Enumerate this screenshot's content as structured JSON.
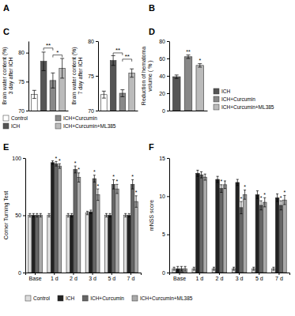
{
  "chart_data": [
    {
      "type": "bar",
      "title": "C",
      "ylabel": "Brain water content (%)\n3 day after ICH",
      "categories": [
        "Control",
        "ICH",
        "ICH+Curcumin",
        "ICH+Curcumin+ML385"
      ],
      "values": [
        72.8,
        78.5,
        75.2,
        77.3
      ],
      "errors": [
        0.7,
        1.6,
        1.3,
        1.7
      ],
      "colors": [
        "#ffffff",
        "#555555",
        "#888888",
        "#bbbbbb"
      ],
      "ylim": [
        70,
        82
      ],
      "yticks": [
        70,
        75,
        80
      ],
      "tick_labels": "y",
      "legend": "bottom",
      "annotations": [
        {
          "text": "A"
        },
        {
          "text": "B"
        },
        {
          "text": "**",
          "x": [
            "ICH",
            "ICH+Curcumin"
          ],
          "y": 80.8
        },
        {
          "text": "*",
          "x": [
            "ICH+Curcumin",
            "ICH+Curcumin+ML385"
          ],
          "y": 79.6
        }
      ]
    },
    {
      "type": "bar",
      "ylabel": "Brain water content (%)\n7 day after ICH",
      "categories": [
        "Control",
        "ICH",
        "ICH+Curcumin",
        "ICH+Curcumin+ML385"
      ],
      "values": [
        72.3,
        77.2,
        72.5,
        75.4
      ],
      "errors": [
        0.5,
        0.7,
        0.5,
        0.6
      ],
      "colors": [
        "#ffffff",
        "#555555",
        "#888888",
        "#bbbbbb"
      ],
      "ylim": [
        70,
        80
      ],
      "yticks": [
        70,
        75,
        80
      ],
      "tick_labels": "y",
      "annotations": [
        {
          "text": "**",
          "x": [
            "ICH",
            "ICH+Curcumin"
          ],
          "y": 78.3
        },
        {
          "text": "**",
          "x": [
            "ICH+Curcumin",
            "ICH+Curcumin+ML385"
          ],
          "y": 77.4
        }
      ]
    },
    {
      "type": "bar",
      "title": "D",
      "ylabel": "Reduction of hematoma\nvolume ( % )",
      "categories": [
        "ICH",
        "ICH+Curcumin",
        "ICH+Curcumin+ML385"
      ],
      "values": [
        39.0,
        62.0,
        52.0
      ],
      "errors": [
        2.0,
        2.0,
        2.0
      ],
      "colors": [
        "#555555",
        "#888888",
        "#bbbbbb"
      ],
      "ylim": [
        0,
        80
      ],
      "yticks": [
        0,
        20,
        40,
        60,
        80
      ],
      "tick_labels": "y",
      "legend": "right",
      "annotations": [
        {
          "text": "**",
          "x": "ICH+Curcumin"
        },
        {
          "text": "*",
          "x": "ICH+Curcumin+ML385"
        }
      ]
    },
    {
      "type": "bar",
      "title": "E",
      "ylabel": "Corner Turning Test",
      "categories": [
        "Base",
        "1 d",
        "2 d",
        "3 d",
        "5 d",
        "7 d"
      ],
      "series": [
        {
          "name": "Control",
          "color": "#dddddd",
          "values": [
            50,
            50,
            50,
            52,
            50,
            50
          ],
          "errors": [
            1.5,
            1.5,
            1.5,
            1.5,
            1.5,
            1.5
          ]
        },
        {
          "name": "ICH",
          "color": "#222222",
          "values": [
            50,
            96,
            50,
            53,
            50,
            50
          ],
          "errors": [
            1.5,
            1.5,
            1.5,
            1.5,
            1.5,
            1.5
          ]
        },
        {
          "name": "ICH+Curcumin",
          "color": "#666666",
          "values": [
            50,
            95,
            90,
            82,
            77,
            77
          ],
          "errors": [
            1.5,
            2.0,
            3.0,
            3.0,
            4.0,
            4.0
          ]
        },
        {
          "name": "ICH+Curcumin+ML385",
          "color": "#aaaaaa",
          "values": [
            50,
            93,
            83,
            68,
            73,
            62
          ],
          "errors": [
            1.5,
            2.0,
            4.0,
            5.0,
            4.0,
            5.0
          ]
        }
      ],
      "ylim": [
        0,
        100
      ],
      "yticks": [
        0,
        50,
        100
      ],
      "annotations": [
        {
          "text": "*",
          "x": "1 d",
          "series": "ICH+Curcumin"
        },
        {
          "text": "*",
          "x": "1 d",
          "series": "ICH+Curcumin+ML385"
        },
        {
          "text": "*",
          "x": "2 d",
          "series": "ICH+Curcumin"
        },
        {
          "text": "*",
          "x": "2 d",
          "series": "ICH+Curcumin+ML385"
        },
        {
          "text": "*",
          "x": "3 d",
          "series": "ICH+Curcumin"
        },
        {
          "text": "*",
          "x": "3 d",
          "series": "ICH+Curcumin+ML385"
        },
        {
          "text": "*",
          "x": "5 d",
          "series": "ICH+Curcumin"
        },
        {
          "text": "*",
          "x": "5 d",
          "series": "ICH+Curcumin+ML385"
        },
        {
          "text": "*",
          "x": "7 d",
          "series": "ICH+Curcumin"
        },
        {
          "text": "*",
          "x": "7 d",
          "series": "ICH+Curcumin+ML385"
        }
      ]
    },
    {
      "type": "bar",
      "title": "F",
      "ylabel": "mNSS score",
      "categories": [
        "Base",
        "1 d",
        "2 d",
        "3 d",
        "5 d",
        "7 d"
      ],
      "series": [
        {
          "name": "Control",
          "color": "#dddddd",
          "values": [
            0.5,
            0.5,
            0.5,
            0.5,
            0.5,
            0.5
          ],
          "errors": [
            0.2,
            0.2,
            0.2,
            0.2,
            0.2,
            0.2
          ]
        },
        {
          "name": "ICH",
          "color": "#222222",
          "values": [
            0.5,
            13.0,
            12.2,
            11.8,
            10.2,
            9.8
          ],
          "errors": [
            0.3,
            0.4,
            0.4,
            0.4,
            0.5,
            0.5
          ]
        },
        {
          "name": "ICH+Curcumin",
          "color": "#666666",
          "values": [
            0.5,
            12.8,
            11.0,
            8.5,
            8.8,
            8.8
          ],
          "errors": [
            0.3,
            0.4,
            0.5,
            0.8,
            0.6,
            0.6
          ]
        },
        {
          "name": "ICH+Curcumin+ML385",
          "color": "#aaaaaa",
          "values": [
            0.5,
            12.5,
            11.5,
            10.2,
            9.2,
            9.5
          ],
          "errors": [
            0.3,
            0.4,
            0.5,
            0.6,
            0.6,
            0.6
          ]
        }
      ],
      "ylim": [
        0,
        15
      ],
      "yticks": [
        0,
        5,
        10,
        15
      ],
      "legend": "bottom",
      "annotations": [
        {
          "text": "*",
          "x": "2 d",
          "series": "ICH+Curcumin"
        },
        {
          "text": "*",
          "x": "3 d",
          "series": "ICH+Curcumin"
        },
        {
          "text": "*",
          "x": "3 d",
          "series": "ICH+Curcumin+ML385"
        },
        {
          "text": "*",
          "x": "5 d",
          "series": "ICH+Curcumin"
        },
        {
          "text": "*",
          "x": "5 d",
          "series": "ICH+Curcumin+ML385"
        },
        {
          "text": "*",
          "x": "7 d",
          "series": "ICH+Curcumin"
        },
        {
          "text": "*",
          "x": "7 d",
          "series": "ICH+Curcumin+ML385"
        }
      ]
    }
  ]
}
